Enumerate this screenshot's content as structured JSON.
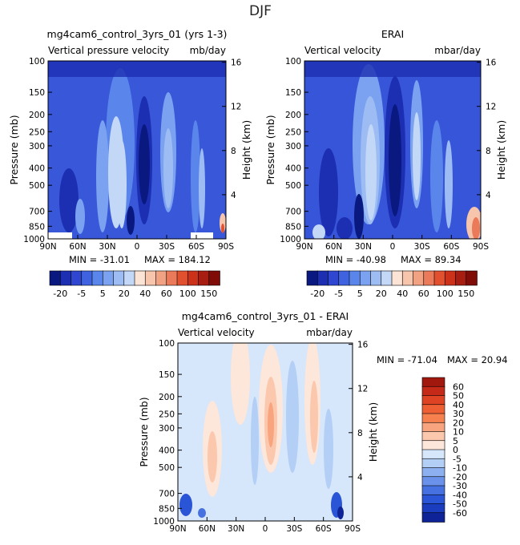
{
  "figure": {
    "title": "DJF"
  },
  "panels": [
    {
      "title": "mg4cam6_control_3yrs_01 (yrs 1-3)",
      "left_label": "Vertical pressure velocity",
      "right_label": "mb/day",
      "min": "-31.01",
      "max": "184.12",
      "min_label": "MIN = -31.01",
      "max_label": "MAX = 184.12"
    },
    {
      "title": "ERAI",
      "left_label": "Vertical velocity",
      "right_label": "mbar/day",
      "min": "-40.98",
      "max": "89.34",
      "min_label": "MIN = -40.98",
      "max_label": "MAX = 89.34"
    },
    {
      "title": "mg4cam6_control_3yrs_01 - ERAI",
      "left_label": "Vertical velocity",
      "right_label": "mbar/day",
      "min": "-71.04",
      "max": "20.94",
      "min_label": "MIN = -71.04",
      "max_label": "MAX = 20.94"
    }
  ],
  "axes": {
    "ylabel": "Pressure (mb)",
    "ylabel_right": "Height (km)",
    "pressure_ticks": [
      "100",
      "150",
      "200",
      "250",
      "300",
      "400",
      "500",
      "700",
      "850",
      "1000"
    ],
    "height_ticks": [
      "16",
      "12",
      "8",
      "4"
    ],
    "lat_ticks": [
      "90N",
      "60N",
      "30N",
      "0",
      "30S",
      "60S",
      "90S"
    ]
  },
  "colorbar_top": {
    "labels": [
      "-20",
      "-5",
      "5",
      "20",
      "40",
      "60",
      "100",
      "150"
    ],
    "colors": [
      "#0a1980",
      "#1c2eb2",
      "#2f47d0",
      "#3f63e0",
      "#5a86ec",
      "#7aa2f0",
      "#9dbcf3",
      "#c3d7f7",
      "#fbe3d5",
      "#f6c5ac",
      "#f1a283",
      "#ea7a59",
      "#e1502f",
      "#cc3119",
      "#a81d12",
      "#800c08"
    ]
  },
  "colorbar_bottom": {
    "labels": [
      "60",
      "50",
      "40",
      "30",
      "20",
      "10",
      "5",
      "0",
      "-5",
      "-10",
      "-20",
      "-30",
      "-40",
      "-50",
      "-60"
    ],
    "colors": [
      "#a1180f",
      "#c42a17",
      "#de4423",
      "#ee6033",
      "#f6814f",
      "#f7a47f",
      "#fbc8ad",
      "#fde6da",
      "#d6e6fb",
      "#b3cff6",
      "#8cb0f0",
      "#6a92ea",
      "#4672e1",
      "#2a55d6",
      "#1a3cbf",
      "#0e2397"
    ]
  },
  "chart_data": [
    {
      "type": "heatmap",
      "title": "mg4cam6_control_3yrs_01 (yrs 1-3)",
      "xlabel": "",
      "ylabel": "Pressure (mb)",
      "x_ticks": [
        "90N",
        "60N",
        "30N",
        "0",
        "30S",
        "60S",
        "90S"
      ],
      "y_ticks": [
        100,
        150,
        200,
        250,
        300,
        400,
        500,
        700,
        850,
        1000
      ],
      "y_scale": "log",
      "y_reversed": true,
      "min": -31.01,
      "max": 184.12,
      "units": "mb/day"
    },
    {
      "type": "heatmap",
      "title": "ERAI",
      "xlabel": "",
      "ylabel": "Pressure (mb)",
      "x_ticks": [
        "90N",
        "60N",
        "30N",
        "0",
        "30S",
        "60S",
        "90S"
      ],
      "y_ticks": [
        100,
        150,
        200,
        250,
        300,
        400,
        500,
        700,
        850,
        1000
      ],
      "y_scale": "log",
      "y_reversed": true,
      "min": -40.98,
      "max": 89.34,
      "units": "mbar/day"
    },
    {
      "type": "heatmap",
      "title": "mg4cam6_control_3yrs_01 - ERAI",
      "xlabel": "",
      "ylabel": "Pressure (mb)",
      "x_ticks": [
        "90N",
        "60N",
        "30N",
        "0",
        "30S",
        "60S",
        "90S"
      ],
      "y_ticks": [
        100,
        150,
        200,
        250,
        300,
        400,
        500,
        700,
        850,
        1000
      ],
      "y_scale": "log",
      "y_reversed": true,
      "min": -71.04,
      "max": 20.94,
      "units": "mbar/day"
    }
  ]
}
